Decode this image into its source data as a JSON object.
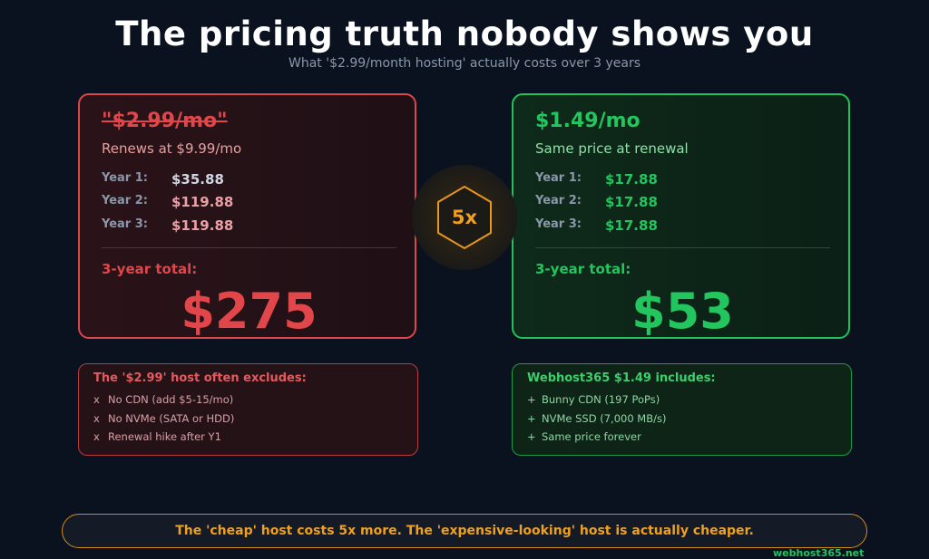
{
  "header": {
    "title": "The pricing truth nobody shows you",
    "subtitle": "What '$2.99/month hosting' actually costs over 3 years"
  },
  "badge": "5x",
  "plans": [
    {
      "price": "\"$2.99/mo\"",
      "note": "Renews at $9.99/mo",
      "years": [
        {
          "label": "Year 1:",
          "value": "$35.88"
        },
        {
          "label": "Year 2:",
          "value": "$119.88"
        },
        {
          "label": "Year 3:",
          "value": "$119.88"
        }
      ],
      "total_label": "3-year total:",
      "total": "$275"
    },
    {
      "price": "$1.49/mo",
      "note": "Same price at renewal",
      "years": [
        {
          "label": "Year 1:",
          "value": "$17.88"
        },
        {
          "label": "Year 2:",
          "value": "$17.88"
        },
        {
          "label": "Year 3:",
          "value": "$17.88"
        }
      ],
      "total_label": "3-year total:",
      "total": "$53"
    }
  ],
  "lists": [
    {
      "title": "The '$2.99' host often excludes:",
      "items": [
        {
          "marker": "x",
          "text": "No CDN (add $5-15/mo)"
        },
        {
          "marker": "x",
          "text": "No NVMe (SATA or HDD)"
        },
        {
          "marker": "x",
          "text": "Renewal hike after Y1"
        }
      ]
    },
    {
      "title": "Webhost365 $1.49 includes:",
      "items": [
        {
          "marker": "+",
          "text": "Bunny CDN (197 PoPs)"
        },
        {
          "marker": "+",
          "text": "NVMe SSD (7,000 MB/s)"
        },
        {
          "marker": "+",
          "text": "Same price forever"
        }
      ]
    }
  ],
  "banner": "The 'cheap' host costs 5x more. The 'expensive-looking' host is actually cheaper.",
  "footer": "webhost365.net"
}
